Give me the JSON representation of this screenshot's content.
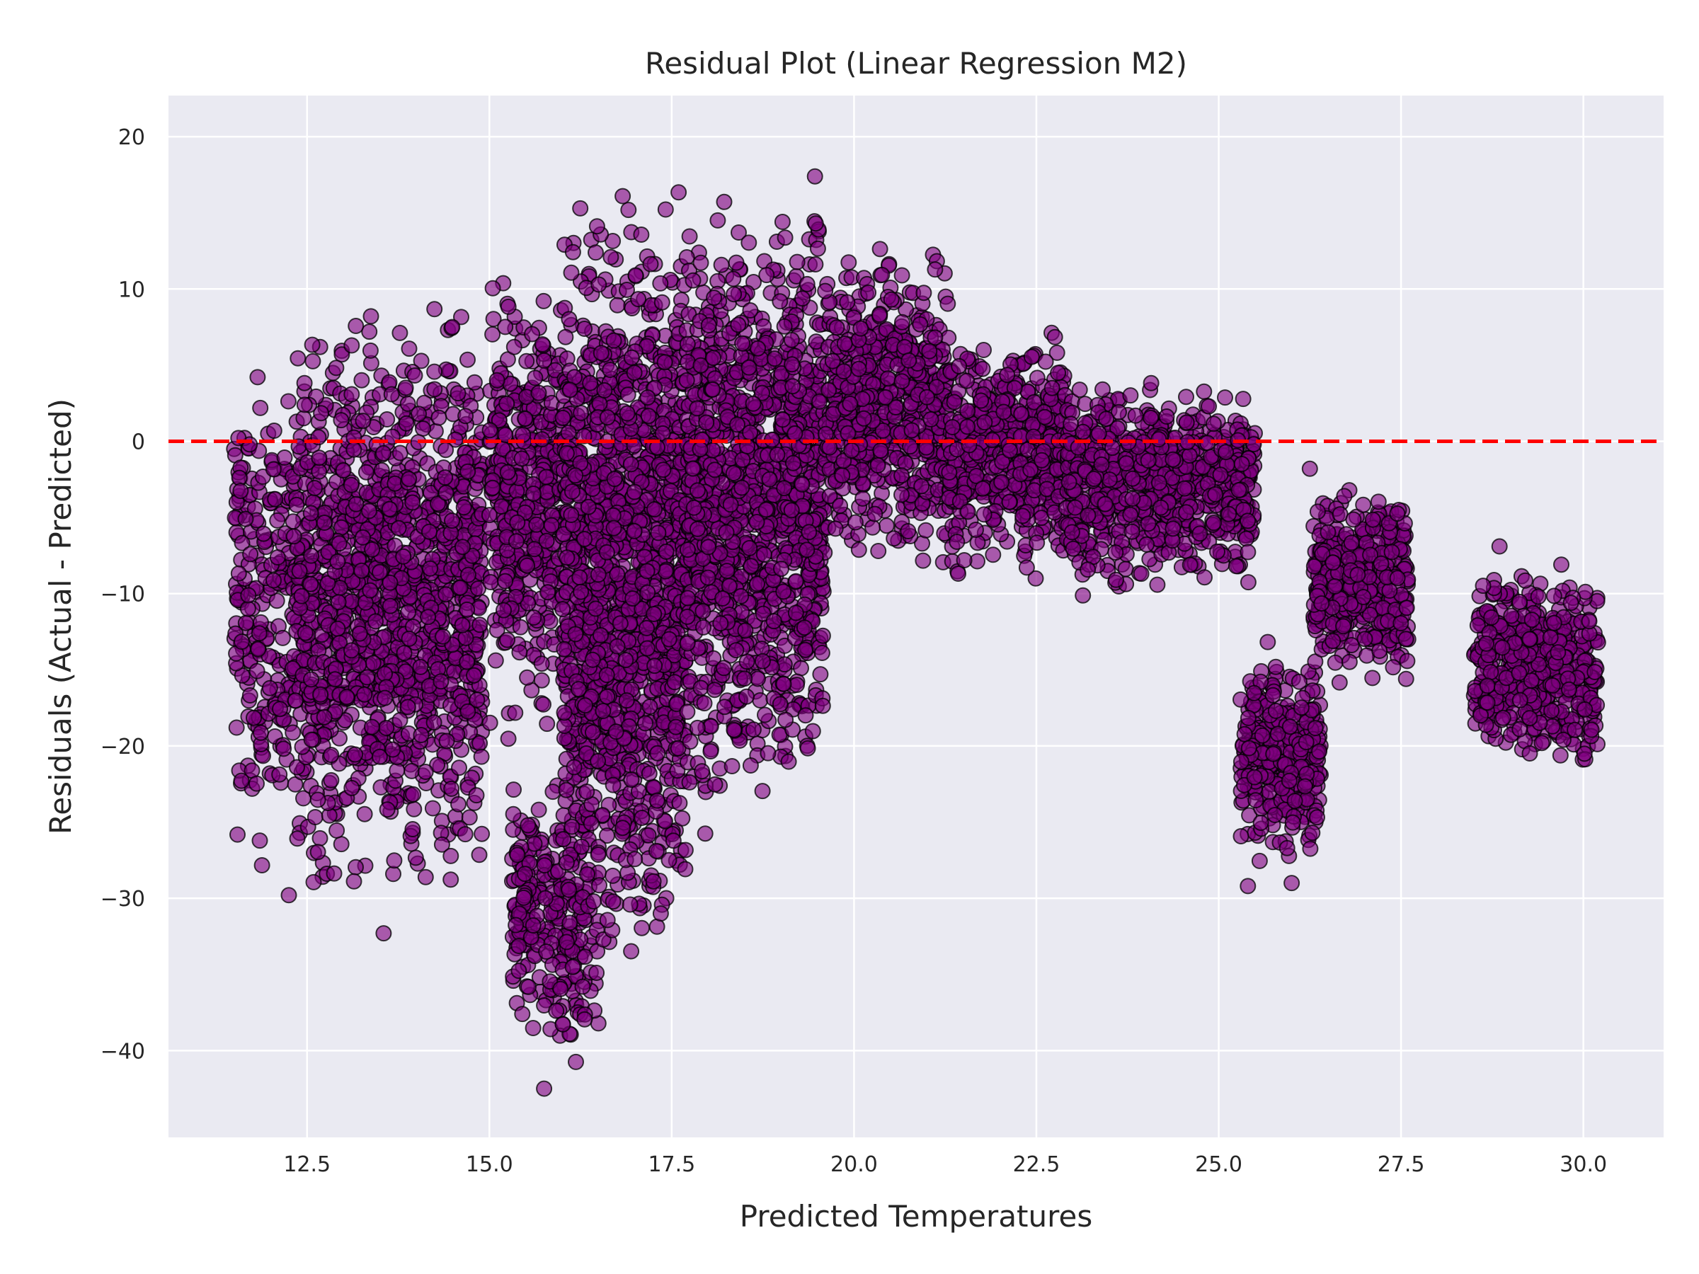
{
  "chart_data": {
    "type": "scatter",
    "title": "Residual Plot (Linear Regression M2)",
    "xlabel": "Predicted Temperatures",
    "ylabel": "Residuals (Actual - Predicted)",
    "xlim": [
      10.6,
      31.1
    ],
    "ylim": [
      -45.7,
      22.7
    ],
    "xticks": [
      12.5,
      15.0,
      17.5,
      20.0,
      22.5,
      25.0,
      27.5,
      30.0
    ],
    "xtick_labels": [
      "12.5",
      "15.0",
      "17.5",
      "20.0",
      "22.5",
      "25.0",
      "27.5",
      "30.0"
    ],
    "yticks": [
      20,
      10,
      0,
      -10,
      -20,
      -30,
      -40
    ],
    "ytick_labels": [
      "20",
      "10",
      "0",
      "−10",
      "−20",
      "−30",
      "−40"
    ],
    "grid": true,
    "background_color": "#eaeaf2",
    "marker_color": "#800080",
    "marker_edge_color": "#000000",
    "reference_line": {
      "y": 0,
      "color": "#ff0000",
      "style": "dashed"
    },
    "clusters": [
      {
        "x_range": [
          11.5,
          12.3
        ],
        "y_range": [
          -29.5,
          7.5
        ],
        "count": 220
      },
      {
        "x_range": [
          12.3,
          14.9
        ],
        "y_range": [
          -32.0,
          11.0
        ],
        "count": 1400
      },
      {
        "x_range": [
          15.0,
          16.0
        ],
        "y_range": [
          -20.0,
          12.5
        ],
        "count": 450
      },
      {
        "x_range": [
          15.3,
          16.5
        ],
        "y_range": [
          -42.5,
          -20.0
        ],
        "count": 260
      },
      {
        "x_range": [
          16.0,
          17.7
        ],
        "y_range": [
          -37.0,
          19.5
        ],
        "count": 1500
      },
      {
        "x_range": [
          17.7,
          19.6
        ],
        "y_range": [
          -27.0,
          18.0
        ],
        "count": 1300
      },
      {
        "x_range": [
          19.6,
          21.3
        ],
        "y_range": [
          -10.0,
          14.5
        ],
        "count": 650
      },
      {
        "x_range": [
          21.3,
          22.9
        ],
        "y_range": [
          -10.0,
          8.0
        ],
        "count": 500
      },
      {
        "x_range": [
          22.9,
          25.5
        ],
        "y_range": [
          -11.0,
          5.0
        ],
        "count": 750
      },
      {
        "x_range": [
          25.3,
          26.4
        ],
        "y_range": [
          -29.0,
          -12.5
        ],
        "count": 330
      },
      {
        "x_range": [
          26.3,
          27.6
        ],
        "y_range": [
          -16.5,
          -2.0
        ],
        "count": 420
      },
      {
        "x_range": [
          28.5,
          30.2
        ],
        "y_range": [
          -22.5,
          -7.0
        ],
        "count": 520
      }
    ],
    "outliers": [
      {
        "x": 15.75,
        "y": -42.5
      },
      {
        "x": 13.55,
        "y": -32.3
      },
      {
        "x": 12.25,
        "y": -29.8
      },
      {
        "x": 17.35,
        "y": -31.0
      },
      {
        "x": 25.4,
        "y": -29.2
      },
      {
        "x": 26.0,
        "y": -29.0
      },
      {
        "x": 28.85,
        "y": -6.9
      },
      {
        "x": 26.25,
        "y": -1.8
      }
    ]
  }
}
